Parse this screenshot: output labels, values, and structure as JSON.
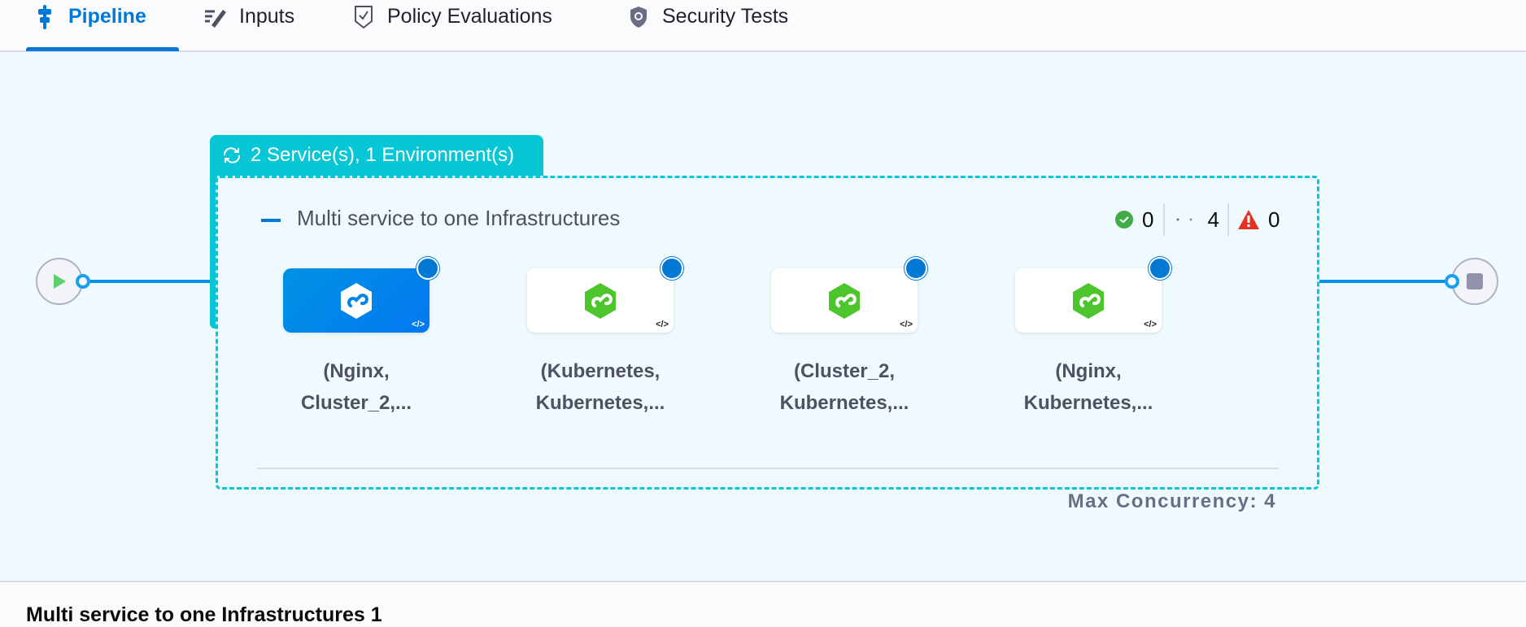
{
  "tabs": [
    {
      "label": "Pipeline",
      "icon": "pipeline-icon",
      "active": true
    },
    {
      "label": "Inputs",
      "icon": "inputs-icon",
      "active": false
    },
    {
      "label": "Policy Evaluations",
      "icon": "policy-shield-check-icon",
      "active": false
    },
    {
      "label": "Security Tests",
      "icon": "security-shield-icon",
      "active": false
    }
  ],
  "stage": {
    "matrix_label": "2 Service(s), 1 Environment(s)",
    "title": "Multi service to one Infrastructures",
    "status": {
      "success": "0",
      "pending": "4",
      "failed": "0"
    },
    "nodes": [
      {
        "line1": "(Nginx,",
        "line2": "Cluster_2,...",
        "selected": true
      },
      {
        "line1": "(Kubernetes,",
        "line2": "Kubernetes,...",
        "selected": false
      },
      {
        "line1": "(Cluster_2,",
        "line2": "Kubernetes,...",
        "selected": false
      },
      {
        "line1": "(Nginx,",
        "line2": "Kubernetes,...",
        "selected": false
      }
    ],
    "max_concurrency": "Max Concurrency: 4"
  },
  "bottom_panel": {
    "title": "Multi service to one Infrastructures 1"
  },
  "colors": {
    "accent": "#0278d5",
    "teal": "#07c6d6",
    "success": "#42ab45",
    "danger": "#e43326",
    "green_service": "#4dc52c"
  }
}
